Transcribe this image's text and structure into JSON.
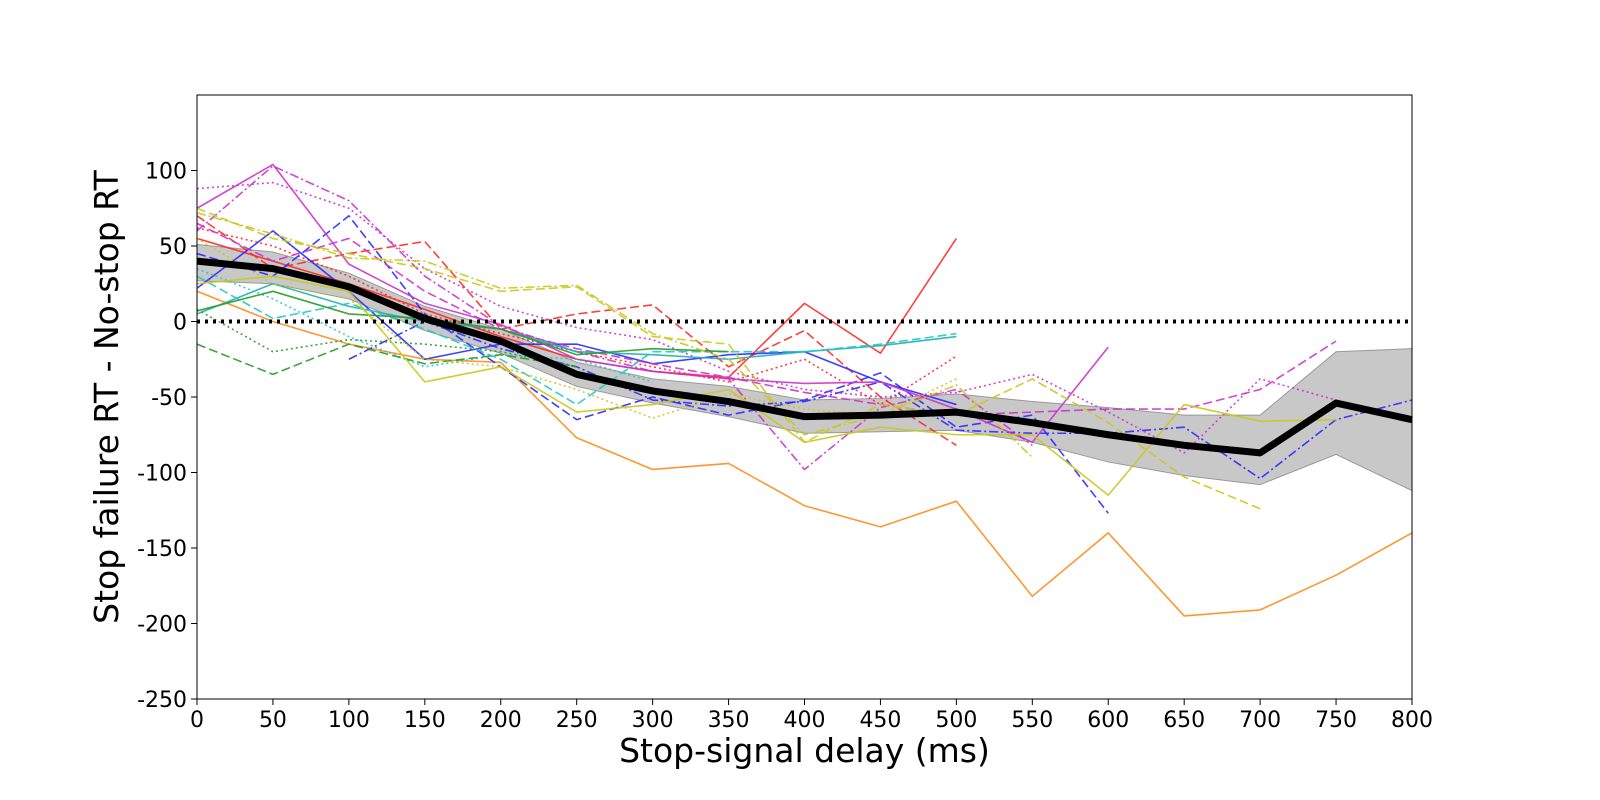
{
  "chart_data": {
    "type": "line",
    "title": "",
    "xlabel": "Stop-signal delay (ms)",
    "ylabel": "Stop failure RT - No-stop RT",
    "xlim": [
      0,
      800
    ],
    "ylim": [
      -250,
      150
    ],
    "xticks": [
      0,
      50,
      100,
      150,
      200,
      250,
      300,
      350,
      400,
      450,
      500,
      550,
      600,
      650,
      700,
      750,
      800
    ],
    "yticks": [
      -250,
      -200,
      -150,
      -100,
      -50,
      0,
      50,
      100
    ],
    "xtick_labels": [
      "0",
      "50",
      "100",
      "150",
      "200",
      "250",
      "300",
      "350",
      "400",
      "450",
      "500",
      "550",
      "600",
      "650",
      "700",
      "750",
      "800"
    ],
    "ytick_labels": [
      "-250",
      "-200",
      "-150",
      "-100",
      "-50",
      "0",
      "50",
      "100"
    ],
    "grid": false,
    "legend": "none",
    "reference_line": {
      "y": 0,
      "style": "dotted",
      "color": "#000000"
    },
    "mean": {
      "color": "#000000",
      "x": [
        0,
        50,
        100,
        150,
        200,
        250,
        300,
        350,
        400,
        450,
        500,
        550,
        600,
        650,
        700,
        750,
        800
      ],
      "y": [
        40,
        35,
        23,
        2,
        -13,
        -35,
        -46,
        -53,
        -63,
        -62,
        -60,
        -67,
        -75,
        -82,
        -87,
        -54,
        -65
      ]
    },
    "ci_band": {
      "color": "#c8c8c8",
      "x": [
        0,
        50,
        100,
        150,
        200,
        250,
        300,
        350,
        400,
        450,
        500,
        550,
        600,
        650,
        700,
        750,
        800
      ],
      "upper": [
        51,
        46,
        32,
        10,
        -5,
        -27,
        -38,
        -43,
        -52,
        -51,
        -48,
        -53,
        -57,
        -62,
        -62,
        -20,
        -18
      ],
      "lower": [
        27,
        25,
        15,
        -6,
        -21,
        -43,
        -54,
        -63,
        -74,
        -73,
        -72,
        -80,
        -93,
        -102,
        -108,
        -88,
        -112
      ]
    },
    "series": [
      {
        "color": "#ff2a2a",
        "dash": "solid",
        "x": [
          0,
          50,
          100,
          150,
          200,
          250,
          300,
          350,
          400,
          450,
          500
        ],
        "y": [
          55,
          40,
          25,
          8,
          -10,
          -25,
          -33,
          -37,
          12,
          -21,
          55
        ]
      },
      {
        "color": "#ff2a2a",
        "dash": "dashed",
        "x": [
          0,
          50,
          100,
          150,
          200,
          250,
          300,
          350,
          400,
          450,
          500
        ],
        "y": [
          70,
          35,
          45,
          53,
          -5,
          5,
          11,
          -30,
          -6,
          -50,
          -82
        ]
      },
      {
        "color": "#ff2a2a",
        "dash": "dotted",
        "x": [
          0,
          50,
          100,
          150,
          200,
          250,
          300,
          350,
          400,
          450,
          500
        ],
        "y": [
          62,
          50,
          30,
          5,
          -8,
          -20,
          -30,
          -40,
          -25,
          -55,
          -23
        ]
      },
      {
        "color": "#ff8c1a",
        "dash": "solid",
        "x": [
          0,
          50,
          100,
          150,
          200,
          250,
          300,
          350,
          400,
          450,
          500,
          550,
          600,
          650,
          700,
          750,
          800
        ],
        "y": [
          20,
          0,
          -15,
          -25,
          -27,
          -77,
          -98,
          -94,
          -122,
          -136,
          -119,
          -182,
          -140,
          -195,
          -191,
          -168,
          -140
        ]
      },
      {
        "color": "#2a2aff",
        "dash": "solid",
        "x": [
          0,
          50,
          100,
          150,
          200,
          250,
          300,
          350,
          400,
          450,
          500
        ],
        "y": [
          22,
          60,
          20,
          -25,
          -15,
          -15,
          -28,
          -22,
          -20,
          -40,
          -55
        ]
      },
      {
        "color": "#2a2aff",
        "dash": "dashed",
        "x": [
          0,
          50,
          100,
          150,
          200,
          250,
          300,
          350,
          400,
          450,
          500,
          550,
          600
        ],
        "y": [
          45,
          30,
          70,
          5,
          -30,
          -65,
          -50,
          -62,
          -52,
          -34,
          -70,
          -62,
          -127
        ]
      },
      {
        "color": "#2a2aff",
        "dash": "dashdot",
        "x": [
          100,
          150,
          200,
          250,
          300,
          350,
          400,
          450,
          500,
          550,
          600,
          650,
          700,
          750,
          800
        ],
        "y": [
          -25,
          0,
          -18,
          -30,
          -52,
          -56,
          -53,
          -40,
          -72,
          -74,
          -74,
          -70,
          -104,
          -65,
          -52
        ]
      },
      {
        "color": "#cc33cc",
        "dash": "solid",
        "x": [
          0,
          50,
          100,
          150,
          200,
          250,
          300,
          350,
          400,
          450,
          500,
          550,
          600
        ],
        "y": [
          75,
          104,
          38,
          12,
          -2,
          -25,
          -33,
          -38,
          -41,
          -40,
          -58,
          -80,
          -17
        ]
      },
      {
        "color": "#cc33cc",
        "dash": "dotted",
        "x": [
          0,
          50,
          100,
          150,
          200,
          250,
          300,
          350,
          400,
          450,
          500,
          550,
          600,
          650,
          700,
          750
        ],
        "y": [
          88,
          92,
          75,
          35,
          10,
          -4,
          -12,
          -33,
          -45,
          -50,
          -47,
          -35,
          -60,
          -87,
          -38,
          -52
        ]
      },
      {
        "color": "#cc33cc",
        "dash": "dashdot",
        "x": [
          0,
          50,
          100,
          150,
          200,
          250,
          300,
          350,
          400,
          450,
          500,
          550
        ],
        "y": [
          60,
          103,
          80,
          30,
          -3,
          -20,
          -33,
          -38,
          -98,
          -57,
          -45,
          -82
        ]
      },
      {
        "color": "#cc33cc",
        "dash": "dashed",
        "x": [
          0,
          50,
          100,
          150,
          200,
          250,
          300,
          350,
          400,
          450,
          500,
          550,
          600,
          650,
          700,
          750
        ],
        "y": [
          65,
          40,
          55,
          20,
          -5,
          -18,
          -28,
          -37,
          -47,
          -55,
          -62,
          -60,
          -58,
          -58,
          -45,
          -13
        ]
      },
      {
        "color": "#20b0b0",
        "dash": "solid",
        "x": [
          0,
          50,
          100,
          150,
          200,
          250,
          300,
          350,
          400,
          450,
          500
        ],
        "y": [
          5,
          25,
          10,
          0,
          -5,
          -20,
          -22,
          -25,
          -20,
          -16,
          -10
        ]
      },
      {
        "color": "#20c8c8",
        "dash": "dashed",
        "x": [
          0,
          50,
          100,
          150,
          200,
          250,
          300,
          350,
          400,
          450,
          500
        ],
        "y": [
          30,
          2,
          12,
          -5,
          -25,
          -55,
          -20,
          -20,
          -20,
          -15,
          -8
        ]
      },
      {
        "color": "#20c8c8",
        "dash": "dotted",
        "x": [
          0,
          50,
          100,
          150,
          200,
          250,
          300
        ],
        "y": [
          35,
          15,
          -10,
          -30,
          -22,
          -25,
          -40
        ]
      },
      {
        "color": "#2a9a2a",
        "dash": "solid",
        "x": [
          0,
          50,
          100,
          150,
          200,
          250,
          300,
          350
        ],
        "y": [
          7,
          20,
          5,
          2,
          -5,
          -22,
          -18,
          -20
        ]
      },
      {
        "color": "#2a9a2a",
        "dash": "dashed",
        "x": [
          0,
          50,
          100,
          150,
          200,
          250
        ],
        "y": [
          -15,
          -35,
          -15,
          -28,
          -22,
          -30
        ]
      },
      {
        "color": "#2a9a2a",
        "dash": "dotted",
        "x": [
          0,
          50,
          100,
          150,
          200,
          250
        ],
        "y": [
          8,
          -20,
          -12,
          -15,
          -20,
          -30
        ]
      },
      {
        "color": "#c8c81e",
        "dash": "solid",
        "x": [
          0,
          50,
          100,
          150,
          200,
          250,
          300,
          350,
          400,
          450,
          500,
          550,
          600,
          650,
          700,
          750
        ],
        "y": [
          25,
          30,
          20,
          -40,
          -30,
          -60,
          -55,
          -45,
          -80,
          -70,
          -75,
          -75,
          -115,
          -55,
          -66,
          -65
        ]
      },
      {
        "color": "#c8c81e",
        "dash": "dashed",
        "x": [
          0,
          50,
          100,
          150,
          200,
          250,
          300,
          350,
          400,
          450,
          500,
          550,
          600,
          650,
          700
        ],
        "y": [
          75,
          55,
          45,
          35,
          20,
          23,
          -10,
          -15,
          -80,
          -55,
          -62,
          -38,
          -67,
          -103,
          -124
        ]
      },
      {
        "color": "#c8c81e",
        "dash": "dashdot",
        "x": [
          0,
          50,
          100,
          150,
          200,
          250,
          300,
          350,
          400,
          450,
          500,
          550
        ],
        "y": [
          72,
          58,
          42,
          40,
          22,
          24,
          -8,
          -25,
          -75,
          -62,
          -42,
          -90
        ]
      },
      {
        "color": "#c8c81e",
        "dash": "dotted",
        "x": [
          0,
          50,
          100,
          150,
          200,
          250,
          300,
          350,
          400,
          450,
          500
        ],
        "y": [
          55,
          25,
          15,
          -25,
          -30,
          -45,
          -64,
          -48,
          -58,
          -62,
          -38
        ]
      }
    ]
  }
}
